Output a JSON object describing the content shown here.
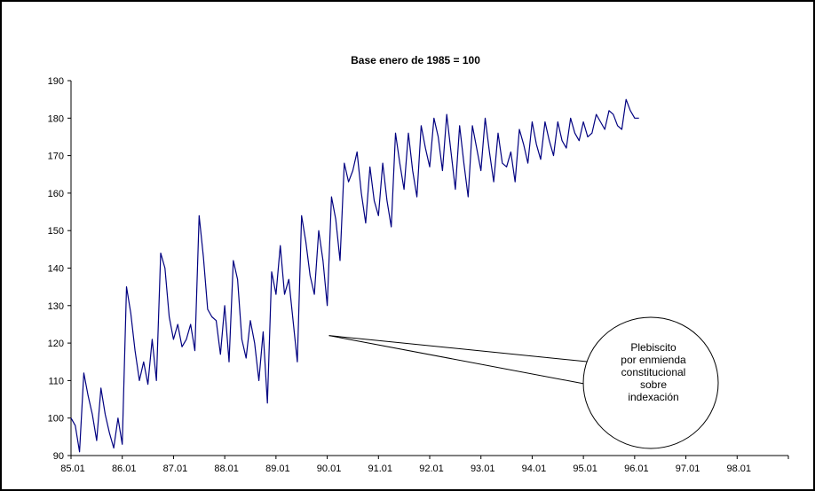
{
  "chart_data": {
    "type": "line",
    "title": "Base enero de 1985 = 100",
    "xlabel": "",
    "ylabel": "",
    "ylim": [
      90,
      190
    ],
    "yticks": [
      90,
      100,
      110,
      120,
      130,
      140,
      150,
      160,
      170,
      180,
      190
    ],
    "xticks": [
      "85.01",
      "86.01",
      "87.01",
      "88.01",
      "89.01",
      "90.01",
      "91.01",
      "92.01",
      "93.01",
      "94.01",
      "95.01",
      "96.01",
      "97.01",
      "98.01"
    ],
    "x_start": "85.01",
    "x_frequency": "monthly",
    "grid": false,
    "legend": "none",
    "line_color": "#000080",
    "series": [
      {
        "values": [
          100,
          98,
          91,
          112,
          106,
          101,
          94,
          108,
          101,
          96,
          92,
          100,
          93,
          135,
          128,
          118,
          110,
          115,
          109,
          121,
          110,
          144,
          140,
          127,
          121,
          125,
          119,
          121,
          125,
          118,
          154,
          143,
          129,
          127,
          126,
          117,
          130,
          115,
          142,
          137,
          121,
          116,
          126,
          120,
          110,
          123,
          104,
          139,
          133,
          146,
          133,
          137,
          126,
          115,
          154,
          147,
          138,
          133,
          150,
          142,
          130,
          159,
          153,
          142,
          168,
          163,
          166,
          171,
          160,
          152,
          167,
          158,
          154,
          168,
          158,
          151,
          176,
          168,
          161,
          176,
          166,
          159,
          178,
          172,
          167,
          180,
          175,
          166,
          181,
          171,
          161,
          178,
          168,
          159,
          178,
          172,
          166,
          180,
          171,
          163,
          176,
          168,
          167,
          171,
          163,
          177,
          173,
          168,
          179,
          173,
          169,
          179,
          174,
          170,
          179,
          174,
          172,
          180,
          176,
          174,
          179,
          175,
          176,
          181,
          179,
          177,
          182,
          181,
          178,
          177,
          185,
          182,
          180,
          180
        ]
      }
    ],
    "annotations": [
      {
        "lines": [
          "Plebiscito",
          "por enmienda",
          "constitucional",
          "sobre",
          "indexación"
        ],
        "target_x": "90.01"
      }
    ]
  }
}
